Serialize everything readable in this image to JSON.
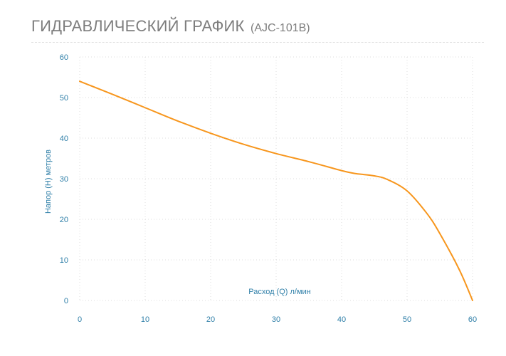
{
  "header": {
    "title": "ГИДРАВЛИЧЕСКИЙ ГРАФИК",
    "model": "(AJC-101B)"
  },
  "chart_data": {
    "type": "line",
    "title": "ГИДРАВЛИЧЕСКИЙ ГРАФИК (AJC-101B)",
    "xlabel": "Расход (Q) л/мин",
    "ylabel": "Напор (H) метров",
    "xlim": [
      0,
      60
    ],
    "ylim": [
      0,
      60
    ],
    "x_ticks": [
      0,
      10,
      20,
      30,
      40,
      50,
      60
    ],
    "y_ticks": [
      0,
      10,
      20,
      30,
      40,
      50,
      60
    ],
    "grid": true,
    "legend": "none",
    "series": [
      {
        "color": "#f7961d",
        "x": [
          0,
          5,
          10,
          15,
          20,
          25,
          30,
          35,
          40,
          42,
          45,
          47,
          50,
          53,
          55,
          58,
          60
        ],
        "y": [
          54,
          50.8,
          47.5,
          44.2,
          41.2,
          38.5,
          36.2,
          34.2,
          32,
          31.3,
          30.7,
          29.8,
          27,
          21.5,
          16.5,
          7.5,
          0
        ]
      }
    ]
  }
}
